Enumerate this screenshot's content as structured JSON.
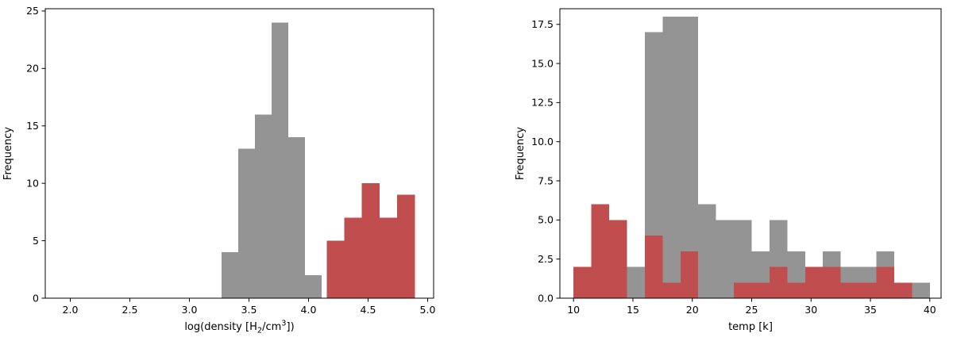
{
  "figure": {
    "background": "#ffffff",
    "ylabel": "Frequency"
  },
  "chart_data": [
    {
      "type": "histogram",
      "title": "",
      "xlabel_text": "log(density [H2/cm3])",
      "xlabel_parts": [
        {
          "t": "log(density [H"
        },
        {
          "t": "2",
          "style": "sub"
        },
        {
          "t": "/cm"
        },
        {
          "t": "3",
          "style": "sup"
        },
        {
          "t": "])"
        }
      ],
      "ylabel": "Frequency",
      "xlim": [
        1.79,
        5.05
      ],
      "ylim": [
        0,
        25.2
      ],
      "grid": false,
      "legend": "none",
      "xticks": {
        "values": [
          2.0,
          2.5,
          3.0,
          3.5,
          4.0,
          4.5,
          5.0
        ],
        "labels": [
          "2.0",
          "2.5",
          "3.0",
          "3.5",
          "4.0",
          "4.5",
          "5.0"
        ]
      },
      "yticks": {
        "values": [
          0,
          5,
          10,
          15,
          20,
          25
        ],
        "labels": [
          "0",
          "5",
          "10",
          "15",
          "20",
          "25"
        ]
      },
      "series": [
        {
          "name": "gray-histogram",
          "color": "#949494",
          "bin_start": 3.27,
          "bin_width": 0.14,
          "counts": [
            4,
            13,
            16,
            24,
            14,
            2
          ]
        },
        {
          "name": "red-histogram",
          "color": "#c04e4e",
          "bin_start": 4.152,
          "bin_width": 0.148,
          "counts": [
            5,
            7,
            10,
            7,
            9
          ]
        }
      ]
    },
    {
      "type": "histogram",
      "title": "",
      "xlabel_text": "temp [k]",
      "xlabel_parts": [
        {
          "t": "temp [k]"
        }
      ],
      "ylabel": "Frequency",
      "xlim": [
        8.85,
        40.95
      ],
      "ylim": [
        0,
        18.5
      ],
      "grid": false,
      "legend": "none",
      "xticks": {
        "values": [
          10,
          15,
          20,
          25,
          30,
          35,
          40
        ],
        "labels": [
          "10",
          "15",
          "20",
          "25",
          "30",
          "35",
          "40"
        ]
      },
      "yticks": {
        "values": [
          0,
          2.5,
          5,
          7.5,
          10,
          12.5,
          15,
          17.5
        ],
        "labels": [
          "0.0",
          "2.5",
          "5.0",
          "7.5",
          "10.0",
          "12.5",
          "15.0",
          "17.5"
        ]
      },
      "series": [
        {
          "name": "gray-histogram",
          "color": "#949494",
          "bin_start": 14.5,
          "bin_width": 1.5,
          "counts": [
            2,
            17,
            18,
            18,
            6,
            5,
            5,
            3,
            5,
            3,
            2,
            3,
            2,
            2,
            3,
            1,
            1
          ]
        },
        {
          "name": "red-histogram",
          "color": "#c04e4e",
          "bin_start": 10,
          "bin_width": 1.5,
          "counts": [
            2,
            6,
            5,
            0,
            4,
            1,
            3,
            0,
            0,
            1,
            1,
            2,
            1,
            2,
            2,
            1,
            1,
            2,
            1
          ]
        }
      ]
    }
  ]
}
